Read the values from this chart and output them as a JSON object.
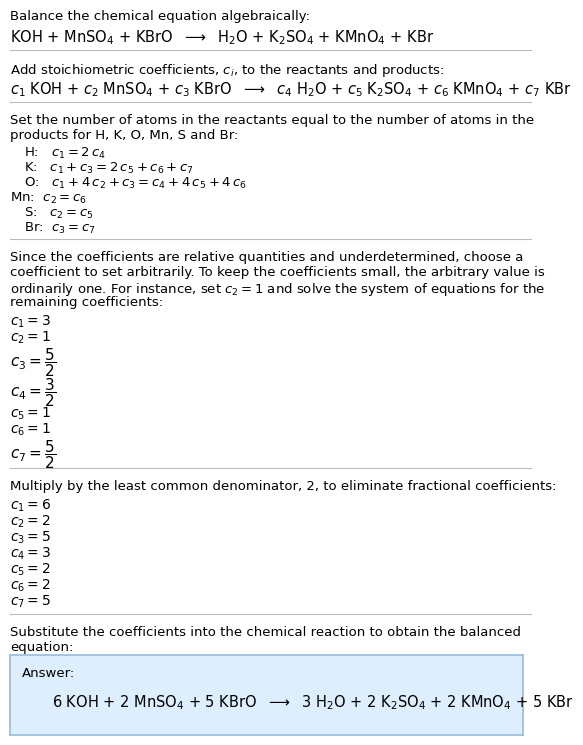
{
  "title_text": "Balance the chemical equation algebraically:",
  "equation1": "KOH + MnSO$_4$ + KBrO  $\\longrightarrow$  H$_2$O + K$_2$SO$_4$ + KMnO$_4$ + KBr",
  "section2_title": "Add stoichiometric coefficients, $c_i$, to the reactants and products:",
  "equation2": "$c_1$ KOH + $c_2$ MnSO$_4$ + $c_3$ KBrO  $\\longrightarrow$  $c_4$ H$_2$O + $c_5$ K$_2$SO$_4$ + $c_6$ KMnO$_4$ + $c_7$ KBr",
  "section3_line1": "Set the number of atoms in the reactants equal to the number of atoms in the",
  "section3_line2": "products for H, K, O, Mn, S and Br:",
  "eq3_H": "H:   $c_1 = 2\\,c_4$",
  "eq3_K": "K:   $c_1 + c_3 = 2\\,c_5 + c_6 + c_7$",
  "eq3_O": "O:   $c_1 + 4\\,c_2 + c_3 = c_4 + 4\\,c_5 + 4\\,c_6$",
  "eq3_Mn": "Mn:  $c_2 = c_6$",
  "eq3_S": "S:   $c_2 = c_5$",
  "eq3_Br": "Br:  $c_3 = c_7$",
  "section4_line1": "Since the coefficients are relative quantities and underdetermined, choose a",
  "section4_line2": "coefficient to set arbitrarily. To keep the coefficients small, the arbitrary value is",
  "section4_line3": "ordinarily one. For instance, set $c_2 = 1$ and solve the system of equations for the",
  "section4_line4": "remaining coefficients:",
  "c1_a": "$c_1 = 3$",
  "c2_a": "$c_2 = 1$",
  "c3_a": "$c_3 = \\dfrac{5}{2}$",
  "c4_a": "$c_4 = \\dfrac{3}{2}$",
  "c5_a": "$c_5 = 1$",
  "c6_a": "$c_6 = 1$",
  "c7_a": "$c_7 = \\dfrac{5}{2}$",
  "section5_title": "Multiply by the least common denominator, 2, to eliminate fractional coefficients:",
  "c1_b": "$c_1 = 6$",
  "c2_b": "$c_2 = 2$",
  "c3_b": "$c_3 = 5$",
  "c4_b": "$c_4 = 3$",
  "c5_b": "$c_5 = 2$",
  "c6_b": "$c_6 = 2$",
  "c7_b": "$c_7 = 5$",
  "section6_line1": "Substitute the coefficients into the chemical reaction to obtain the balanced",
  "section6_line2": "equation:",
  "answer_label": "Answer:",
  "answer_eq": "6 KOH + 2 MnSO$_4$ + 5 KBrO  $\\longrightarrow$  3 H$_2$O + 2 K$_2$SO$_4$ + 2 KMnO$_4$ + 5 KBr",
  "bg_color": "#ffffff",
  "answer_box_color": "#ddeeff",
  "answer_box_edge": "#99bbdd",
  "text_color": "#000000",
  "line_color": "#bbbbbb",
  "font_size": 9.5,
  "eq_font_size": 10.5,
  "coeff_font_size": 10.0
}
